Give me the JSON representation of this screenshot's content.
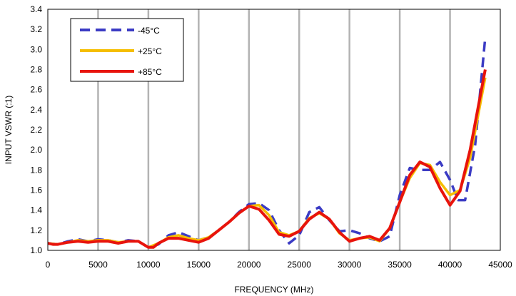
{
  "chart_data": {
    "type": "line",
    "title": "",
    "xlabel": "FREQUENCY  (MHz)",
    "ylabel": "INPUT VSWR (:1)",
    "xlim": [
      0,
      45000
    ],
    "ylim": [
      1.0,
      3.4
    ],
    "xticks": [
      0,
      5000,
      10000,
      15000,
      20000,
      25000,
      30000,
      35000,
      40000,
      45000
    ],
    "yticks": [
      1.0,
      1.2,
      1.4,
      1.6,
      1.8,
      2.0,
      2.2,
      2.4,
      2.6,
      2.8,
      3.0,
      3.2,
      3.4
    ],
    "xtick_labels": [
      "0",
      "5000",
      "10000",
      "15000",
      "20000",
      "25000",
      "30000",
      "35000",
      "40000",
      "45000"
    ],
    "ytick_labels": [
      "1.0",
      "1.2",
      "1.4",
      "1.6",
      "1.8",
      "2.0",
      "2.2",
      "2.4",
      "2.6",
      "2.8",
      "3.0",
      "3.2",
      "3.4"
    ],
    "grid": "vertical",
    "legend_position": "top-left",
    "series": [
      {
        "name": "-45°C",
        "color": "#3b3bc4",
        "style": "dashed",
        "points": [
          [
            0,
            1.07
          ],
          [
            1000,
            1.06
          ],
          [
            2000,
            1.09
          ],
          [
            3000,
            1.11
          ],
          [
            4000,
            1.09
          ],
          [
            5000,
            1.11
          ],
          [
            6000,
            1.1
          ],
          [
            7000,
            1.08
          ],
          [
            8000,
            1.1
          ],
          [
            9000,
            1.09
          ],
          [
            10000,
            1.03
          ],
          [
            11000,
            1.06
          ],
          [
            12000,
            1.15
          ],
          [
            13000,
            1.18
          ],
          [
            14000,
            1.14
          ],
          [
            15000,
            1.1
          ],
          [
            16000,
            1.13
          ],
          [
            17000,
            1.2
          ],
          [
            18000,
            1.28
          ],
          [
            19000,
            1.38
          ],
          [
            20000,
            1.46
          ],
          [
            21000,
            1.47
          ],
          [
            22000,
            1.4
          ],
          [
            23000,
            1.2
          ],
          [
            24000,
            1.07
          ],
          [
            25000,
            1.15
          ],
          [
            26000,
            1.38
          ],
          [
            27000,
            1.43
          ],
          [
            28000,
            1.3
          ],
          [
            29000,
            1.19
          ],
          [
            30000,
            1.2
          ],
          [
            31000,
            1.17
          ],
          [
            32000,
            1.12
          ],
          [
            33000,
            1.09
          ],
          [
            34000,
            1.14
          ],
          [
            35000,
            1.55
          ],
          [
            36000,
            1.82
          ],
          [
            37000,
            1.8
          ],
          [
            38000,
            1.8
          ],
          [
            39000,
            1.88
          ],
          [
            40000,
            1.7
          ],
          [
            40800,
            1.5
          ],
          [
            41500,
            1.5
          ],
          [
            42500,
            2.05
          ],
          [
            43500,
            3.12
          ]
        ]
      },
      {
        "name": "+25°C",
        "color": "#f5be00",
        "style": "solid",
        "points": [
          [
            0,
            1.07
          ],
          [
            1000,
            1.06
          ],
          [
            2000,
            1.08
          ],
          [
            3000,
            1.1
          ],
          [
            4000,
            1.09
          ],
          [
            5000,
            1.1
          ],
          [
            6000,
            1.1
          ],
          [
            7000,
            1.08
          ],
          [
            8000,
            1.09
          ],
          [
            9000,
            1.09
          ],
          [
            10000,
            1.03
          ],
          [
            11000,
            1.07
          ],
          [
            12000,
            1.13
          ],
          [
            13000,
            1.15
          ],
          [
            14000,
            1.12
          ],
          [
            15000,
            1.1
          ],
          [
            16000,
            1.13
          ],
          [
            17000,
            1.2
          ],
          [
            18000,
            1.28
          ],
          [
            19000,
            1.37
          ],
          [
            20000,
            1.44
          ],
          [
            21000,
            1.45
          ],
          [
            22000,
            1.35
          ],
          [
            23000,
            1.18
          ],
          [
            24000,
            1.15
          ],
          [
            25000,
            1.19
          ],
          [
            26000,
            1.32
          ],
          [
            27000,
            1.37
          ],
          [
            28000,
            1.31
          ],
          [
            29000,
            1.17
          ],
          [
            30000,
            1.1
          ],
          [
            31000,
            1.12
          ],
          [
            32000,
            1.13
          ],
          [
            33000,
            1.09
          ],
          [
            34000,
            1.22
          ],
          [
            35000,
            1.48
          ],
          [
            36000,
            1.72
          ],
          [
            37000,
            1.87
          ],
          [
            38000,
            1.85
          ],
          [
            39000,
            1.68
          ],
          [
            40000,
            1.55
          ],
          [
            41000,
            1.6
          ],
          [
            42000,
            1.92
          ],
          [
            43500,
            2.72
          ]
        ]
      },
      {
        "name": "+85°C",
        "color": "#e8140c",
        "style": "solid",
        "points": [
          [
            0,
            1.07
          ],
          [
            500,
            1.06
          ],
          [
            1000,
            1.06
          ],
          [
            2000,
            1.08
          ],
          [
            3000,
            1.09
          ],
          [
            4000,
            1.08
          ],
          [
            5000,
            1.09
          ],
          [
            6000,
            1.09
          ],
          [
            7000,
            1.07
          ],
          [
            8000,
            1.09
          ],
          [
            9000,
            1.09
          ],
          [
            10000,
            1.03
          ],
          [
            10500,
            1.03
          ],
          [
            11000,
            1.07
          ],
          [
            12000,
            1.12
          ],
          [
            13000,
            1.12
          ],
          [
            14000,
            1.1
          ],
          [
            15000,
            1.08
          ],
          [
            16000,
            1.12
          ],
          [
            17000,
            1.2
          ],
          [
            18000,
            1.28
          ],
          [
            19000,
            1.37
          ],
          [
            20000,
            1.44
          ],
          [
            21000,
            1.41
          ],
          [
            22000,
            1.3
          ],
          [
            23000,
            1.16
          ],
          [
            24000,
            1.14
          ],
          [
            25000,
            1.19
          ],
          [
            26000,
            1.31
          ],
          [
            27000,
            1.38
          ],
          [
            28000,
            1.31
          ],
          [
            29000,
            1.18
          ],
          [
            30000,
            1.09
          ],
          [
            31000,
            1.12
          ],
          [
            32000,
            1.14
          ],
          [
            33000,
            1.1
          ],
          [
            34000,
            1.22
          ],
          [
            35000,
            1.48
          ],
          [
            36000,
            1.75
          ],
          [
            37000,
            1.88
          ],
          [
            38000,
            1.83
          ],
          [
            39000,
            1.62
          ],
          [
            40000,
            1.45
          ],
          [
            41000,
            1.59
          ],
          [
            42000,
            2.0
          ],
          [
            43500,
            2.8
          ]
        ]
      }
    ]
  }
}
